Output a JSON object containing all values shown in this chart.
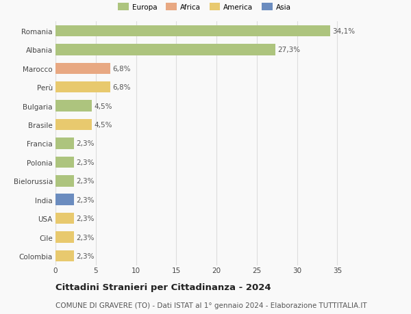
{
  "categories": [
    "Romania",
    "Albania",
    "Marocco",
    "Perù",
    "Bulgaria",
    "Brasile",
    "Francia",
    "Polonia",
    "Bielorussia",
    "India",
    "USA",
    "Cile",
    "Colombia"
  ],
  "values": [
    34.1,
    27.3,
    6.8,
    6.8,
    4.5,
    4.5,
    2.3,
    2.3,
    2.3,
    2.3,
    2.3,
    2.3,
    2.3
  ],
  "labels": [
    "34,1%",
    "27,3%",
    "6,8%",
    "6,8%",
    "4,5%",
    "4,5%",
    "2,3%",
    "2,3%",
    "2,3%",
    "2,3%",
    "2,3%",
    "2,3%",
    "2,3%"
  ],
  "colors": [
    "#adc47e",
    "#adc47e",
    "#e8a882",
    "#e8c96e",
    "#adc47e",
    "#e8c96e",
    "#adc47e",
    "#adc47e",
    "#adc47e",
    "#6b8cbf",
    "#e8c96e",
    "#e8c96e",
    "#e8c96e"
  ],
  "legend_labels": [
    "Europa",
    "Africa",
    "America",
    "Asia"
  ],
  "legend_colors": [
    "#adc47e",
    "#e8a882",
    "#e8c96e",
    "#6b8cbf"
  ],
  "title": "Cittadini Stranieri per Cittadinanza - 2024",
  "subtitle": "COMUNE DI GRAVERE (TO) - Dati ISTAT al 1° gennaio 2024 - Elaborazione TUTTITALIA.IT",
  "xlim": [
    0,
    37
  ],
  "xticks": [
    0,
    5,
    10,
    15,
    20,
    25,
    30,
    35
  ],
  "background_color": "#f9f9f9",
  "grid_color": "#dddddd",
  "bar_height": 0.6,
  "label_fontsize": 7.5,
  "tick_fontsize": 7.5,
  "title_fontsize": 9.5,
  "subtitle_fontsize": 7.5
}
